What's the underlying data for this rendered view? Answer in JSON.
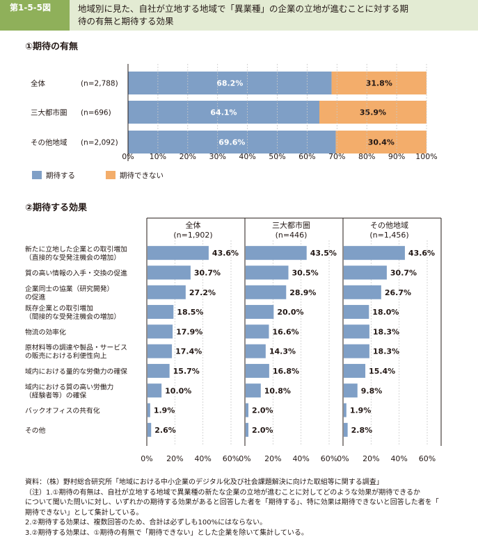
{
  "header": {
    "figure_number": "第1-5-5図",
    "title_line1": "地域別に見た、自社が立地する地域で「異業種」の企業の立地が進むことに対する期",
    "title_line2": "待の有無と期待する効果"
  },
  "colors": {
    "header_bg": "#e3ebd3",
    "figure_number_bg": "#8fb05a",
    "expect": "#7f9fc6",
    "not_expect": "#f3ad6b"
  },
  "chart_data": [
    {
      "type": "bar",
      "orientation": "horizontal",
      "stacked": true,
      "title": "①期待の有無",
      "categories": [
        "全体",
        "三大都市圏",
        "その他地域"
      ],
      "sample_sizes": [
        "(n=2,788)",
        "(n=696)",
        "(n=2,092)"
      ],
      "series": [
        {
          "name": "期待する",
          "values": [
            68.2,
            64.1,
            69.6
          ],
          "labels": [
            "68.2%",
            "64.1%",
            "69.6%"
          ],
          "color": "#7f9fc6"
        },
        {
          "name": "期待できない",
          "values": [
            31.8,
            35.9,
            30.4
          ],
          "labels": [
            "31.8%",
            "35.9%",
            "30.4%"
          ],
          "color": "#f3ad6b"
        }
      ],
      "xlim": [
        0,
        100
      ],
      "x_ticks": [
        "0%",
        "10%",
        "20%",
        "30%",
        "40%",
        "50%",
        "60%",
        "70%",
        "80%",
        "90%",
        "100%"
      ],
      "legend_position": "bottom-left"
    },
    {
      "type": "bar",
      "orientation": "horizontal",
      "title": "②期待する効果",
      "categories": [
        [
          "新たに立地した企業との取引増加",
          "（直接的な受発注機会の増加）"
        ],
        [
          "質の高い情報の入手・交換の促進"
        ],
        [
          "企業同士の協業（研究開発）",
          "の促進"
        ],
        [
          "既存企業との取引増加",
          "（間接的な受発注機会の増加）"
        ],
        [
          "物流の効率化"
        ],
        [
          "原材料等の調達や製品・サービス",
          "の販売における利便性向上"
        ],
        [
          "域内における量的な労働力の確保"
        ],
        [
          "域内における質の高い労働力",
          "（経験者等）の確保"
        ],
        [
          "バックオフィスの共有化"
        ],
        [
          "その他"
        ]
      ],
      "panels": [
        {
          "name": "全体",
          "n": "(n=1,902)",
          "values": [
            43.6,
            30.7,
            27.2,
            18.5,
            17.9,
            17.4,
            15.7,
            10.0,
            1.9,
            2.6
          ],
          "labels": [
            "43.6%",
            "30.7%",
            "27.2%",
            "18.5%",
            "17.9%",
            "17.4%",
            "15.7%",
            "10.0%",
            "1.9%",
            "2.6%"
          ]
        },
        {
          "name": "三大都市圏",
          "n": "(n=446)",
          "values": [
            43.5,
            30.5,
            28.9,
            20.0,
            16.6,
            14.3,
            16.8,
            10.8,
            2.0,
            2.0
          ],
          "labels": [
            "43.5%",
            "30.5%",
            "28.9%",
            "20.0%",
            "16.6%",
            "14.3%",
            "16.8%",
            "10.8%",
            "2.0%",
            "2.0%"
          ]
        },
        {
          "name": "その他地域",
          "n": "(n=1,456)",
          "values": [
            43.6,
            30.7,
            26.7,
            18.0,
            18.3,
            18.3,
            15.4,
            9.8,
            1.9,
            2.8
          ],
          "labels": [
            "43.6%",
            "30.7%",
            "26.7%",
            "18.0%",
            "18.3%",
            "18.3%",
            "15.4%",
            "9.8%",
            "1.9%",
            "2.8%"
          ]
        }
      ],
      "xlim": [
        0,
        60
      ],
      "x_ticks": [
        "0%",
        "20%",
        "40%",
        "60%"
      ],
      "color": "#7f9fc6"
    }
  ],
  "notes": [
    "資料：（株）野村総合研究所「地域における中小企業のデジタル化及び社会課題解決に向けた取組等に関する調査」",
    "（注）1.①期待の有無は、自社が立地する地域で異業種の新たな企業の立地が進むことに対してどのような効果が期待できるか",
    "について聞いた問いに対し、いずれかの期待する効果があると回答した者を「期待する」、特に効果は期待できないと回答した者を「",
    "期待できない」として集計している。",
    "2.②期待する効果は、複数回答のため、合計は必ずしも100%にはならない。",
    "3.②期待する効果は、①期待の有無で「期待できない」とした企業を除いて集計している。"
  ]
}
